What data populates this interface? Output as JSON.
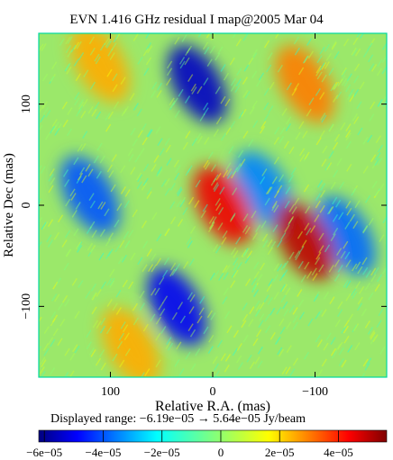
{
  "chart_data": {
    "type": "heatmap",
    "title": "EVN 1.416 GHz residual I map@2005 Mar 04",
    "xlabel": "Relative R.A. (mas)",
    "ylabel": "Relative Dec (mas)",
    "xlim": [
      170,
      -170
    ],
    "ylim": [
      -170,
      170
    ],
    "x_ticks": [
      100,
      0,
      -100
    ],
    "x_tick_labels": [
      "100",
      "0",
      "−100"
    ],
    "y_ticks": [
      100,
      0,
      -100
    ],
    "y_tick_labels": [
      "100",
      "0",
      "−100"
    ],
    "displayed_range_text": "Displayed range: −6.19e−05 → 5.64e−05 Jy/beam",
    "value_range": [
      -6.19e-05,
      5.64e-05
    ],
    "colorbar": {
      "ticks": [
        -6e-05,
        -4e-05,
        -2e-05,
        0,
        2e-05,
        4e-05
      ],
      "tick_labels": [
        "−6e−05",
        "−4e−05",
        "−2e−05",
        "0",
        "2e−05",
        "4e−05"
      ]
    },
    "colormap": "jet",
    "grid": false,
    "features": [
      {
        "x": 15,
        "y": 120,
        "level": -5.5e-05
      },
      {
        "x": 120,
        "y": 10,
        "level": -4e-05
      },
      {
        "x": 35,
        "y": -100,
        "level": -5e-05
      },
      {
        "x": -50,
        "y": 15,
        "level": -3.5e-05
      },
      {
        "x": -130,
        "y": -30,
        "level": -3.8e-05
      },
      {
        "x": -10,
        "y": 0,
        "level": 4.5e-05
      },
      {
        "x": -90,
        "y": -35,
        "level": 5e-05
      },
      {
        "x": -90,
        "y": 120,
        "level": 3e-05
      },
      {
        "x": 110,
        "y": 140,
        "level": 2.5e-05
      },
      {
        "x": 80,
        "y": -140,
        "level": 2.5e-05
      }
    ]
  }
}
